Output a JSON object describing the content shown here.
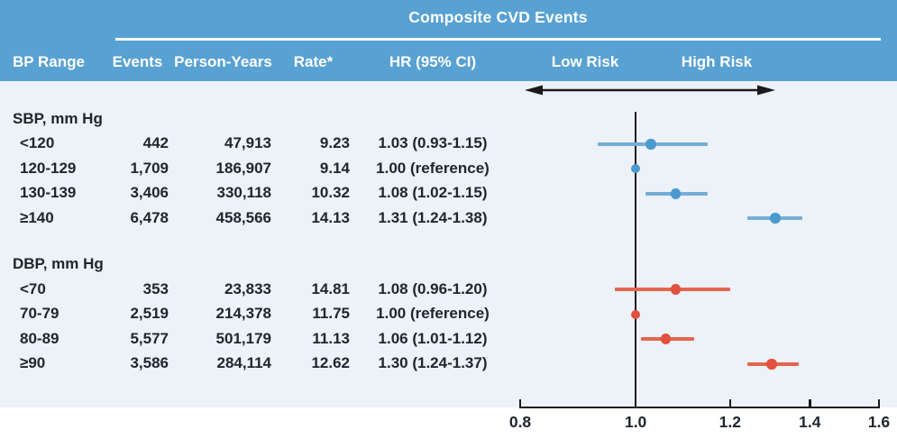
{
  "header": {
    "title": "Composite CVD Events",
    "columns": [
      "BP Range",
      "Events",
      "Person-Years",
      "Rate*",
      "HR (95% CI)"
    ],
    "low_risk_label": "Low Risk",
    "high_risk_label": "High Risk"
  },
  "table": {
    "sections": [
      {
        "heading": "SBP, mm Hg",
        "rows": [
          {
            "label": "<120",
            "events": "442",
            "person_years": "47,913",
            "rate": "9.23",
            "hr_text": "1.03 (0.93-1.15)"
          },
          {
            "label": "120-129",
            "events": "1,709",
            "person_years": "186,907",
            "rate": "9.14",
            "hr_text": "1.00 (reference)"
          },
          {
            "label": "130-139",
            "events": "3,406",
            "person_years": "330,118",
            "rate": "10.32",
            "hr_text": "1.08 (1.02-1.15)"
          },
          {
            "label": "≥140",
            "events": "6,478",
            "person_years": "458,566",
            "rate": "14.13",
            "hr_text": "1.31 (1.24-1.38)"
          }
        ]
      },
      {
        "heading": "DBP, mm Hg",
        "rows": [
          {
            "label": "<70",
            "events": "353",
            "person_years": "23,833",
            "rate": "14.81",
            "hr_text": "1.08 (0.96-1.20)"
          },
          {
            "label": "70-79",
            "events": "2,519",
            "person_years": "214,378",
            "rate": "11.75",
            "hr_text": "1.00 (reference)"
          },
          {
            "label": "80-89",
            "events": "5,577",
            "person_years": "501,179",
            "rate": "11.13",
            "hr_text": "1.06 (1.01-1.12)"
          },
          {
            "label": "≥90",
            "events": "3,586",
            "person_years": "284,114",
            "rate": "12.62",
            "hr_text": "1.30 (1.24-1.37)"
          }
        ]
      }
    ]
  },
  "axis": {
    "tick_labels": [
      "0.8",
      "1.0",
      "1.2",
      "1.4",
      "1.6"
    ]
  },
  "colors": {
    "header_bg": "#58a1d3",
    "panel_bg": "#edf1f8",
    "header_text": "#ffffff",
    "body_text": "#20252e",
    "axis": "#1a1a1a",
    "sbp_dot": "#4a99cf",
    "sbp_line": "#74add8",
    "dbp_dot": "#e0523e",
    "dbp_line": "#e4654f"
  },
  "chart_data": {
    "type": "scatter",
    "subtype": "forest-plot",
    "title": "Composite CVD Events",
    "x_scale": "log",
    "xlim": [
      0.8,
      1.6
    ],
    "x_ticks": [
      0.8,
      1.0,
      1.2,
      1.4,
      1.6
    ],
    "reference_line_x": 1.0,
    "direction_labels": {
      "left": "Low Risk",
      "right": "High Risk"
    },
    "series": [
      {
        "name": "SBP, mm Hg",
        "color": "#4a99cf",
        "line_color": "#74add8",
        "points": [
          {
            "category": "<120",
            "hr": 1.03,
            "ci_low": 0.93,
            "ci_high": 1.15,
            "reference": false
          },
          {
            "category": "120-129",
            "hr": 1.0,
            "ci_low": null,
            "ci_high": null,
            "reference": true
          },
          {
            "category": "130-139",
            "hr": 1.08,
            "ci_low": 1.02,
            "ci_high": 1.15,
            "reference": false
          },
          {
            "category": "≥140",
            "hr": 1.31,
            "ci_low": 1.24,
            "ci_high": 1.38,
            "reference": false
          }
        ]
      },
      {
        "name": "DBP, mm Hg",
        "color": "#e0523e",
        "line_color": "#e4654f",
        "points": [
          {
            "category": "<70",
            "hr": 1.08,
            "ci_low": 0.96,
            "ci_high": 1.2,
            "reference": false
          },
          {
            "category": "70-79",
            "hr": 1.0,
            "ci_low": null,
            "ci_high": null,
            "reference": true
          },
          {
            "category": "80-89",
            "hr": 1.06,
            "ci_low": 1.01,
            "ci_high": 1.12,
            "reference": false
          },
          {
            "category": "≥90",
            "hr": 1.3,
            "ci_low": 1.24,
            "ci_high": 1.37,
            "reference": false
          }
        ]
      }
    ]
  }
}
